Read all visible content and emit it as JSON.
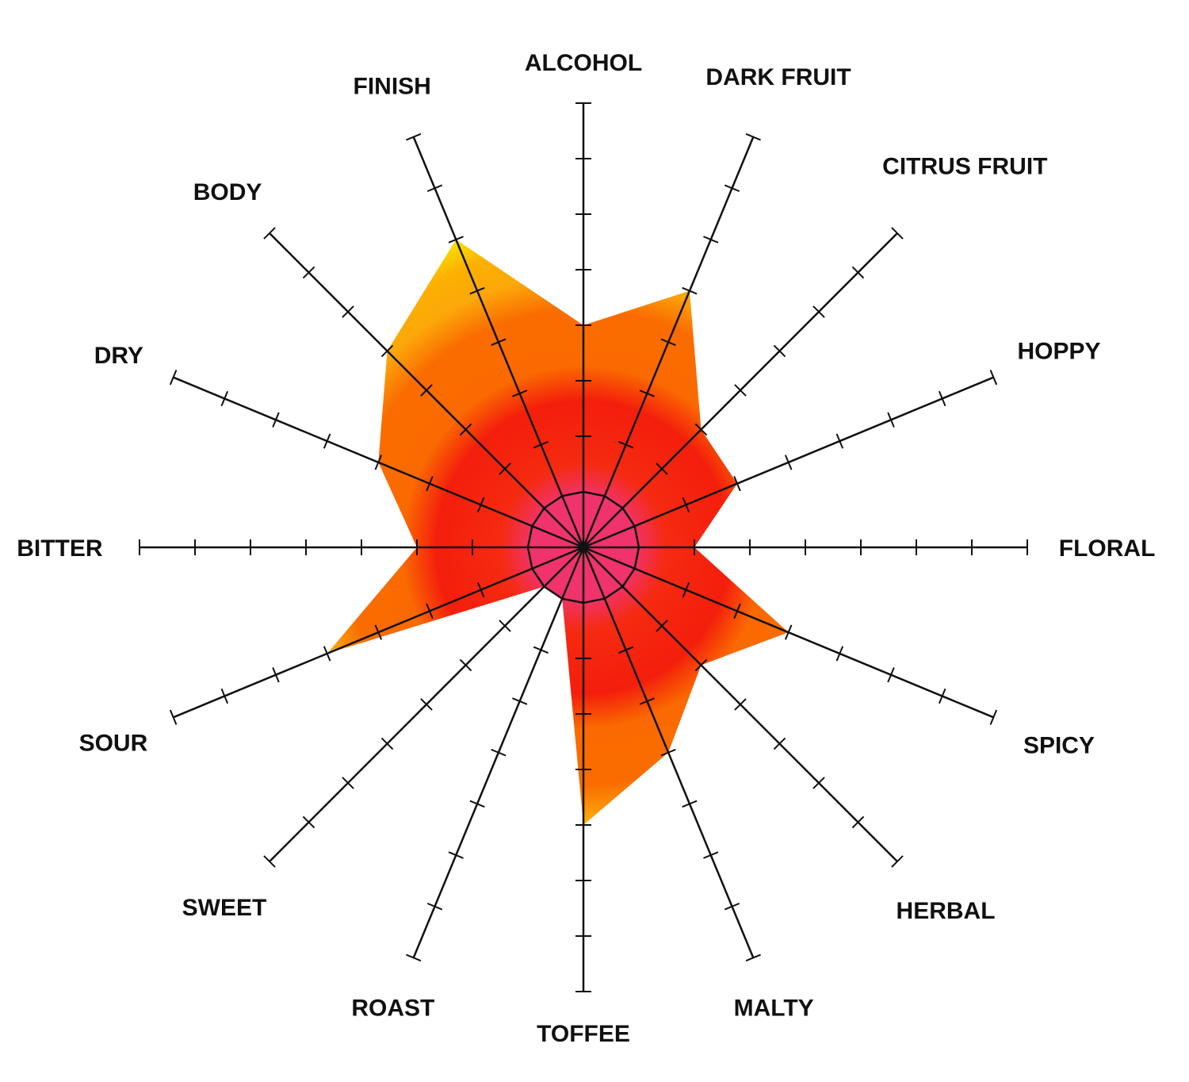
{
  "chart_data": {
    "type": "radar",
    "axes": [
      "ALCOHOL",
      "DARK FRUIT",
      "CITRUS FRUIT",
      "HOPPY",
      "FLORAL",
      "SPICY",
      "HERBAL",
      "MALTY",
      "TOFFEE",
      "ROAST",
      "SWEET",
      "SOUR",
      "BITTER",
      "DRY",
      "BODY",
      "FINISH"
    ],
    "values": [
      4,
      5,
      3,
      3,
      2,
      4,
      3,
      4,
      5,
      1,
      1,
      5,
      3,
      4,
      5,
      6
    ],
    "range": [
      0,
      8
    ],
    "tick_step": 1,
    "baseline_ring": 1,
    "fill": "radial gradient",
    "colors": {
      "center": "#f0336a",
      "inner": "#f41e0c",
      "mid": "#fa6a00",
      "outer": "#fcab08",
      "edge": "#f4ff00",
      "axis": "#111111"
    }
  }
}
